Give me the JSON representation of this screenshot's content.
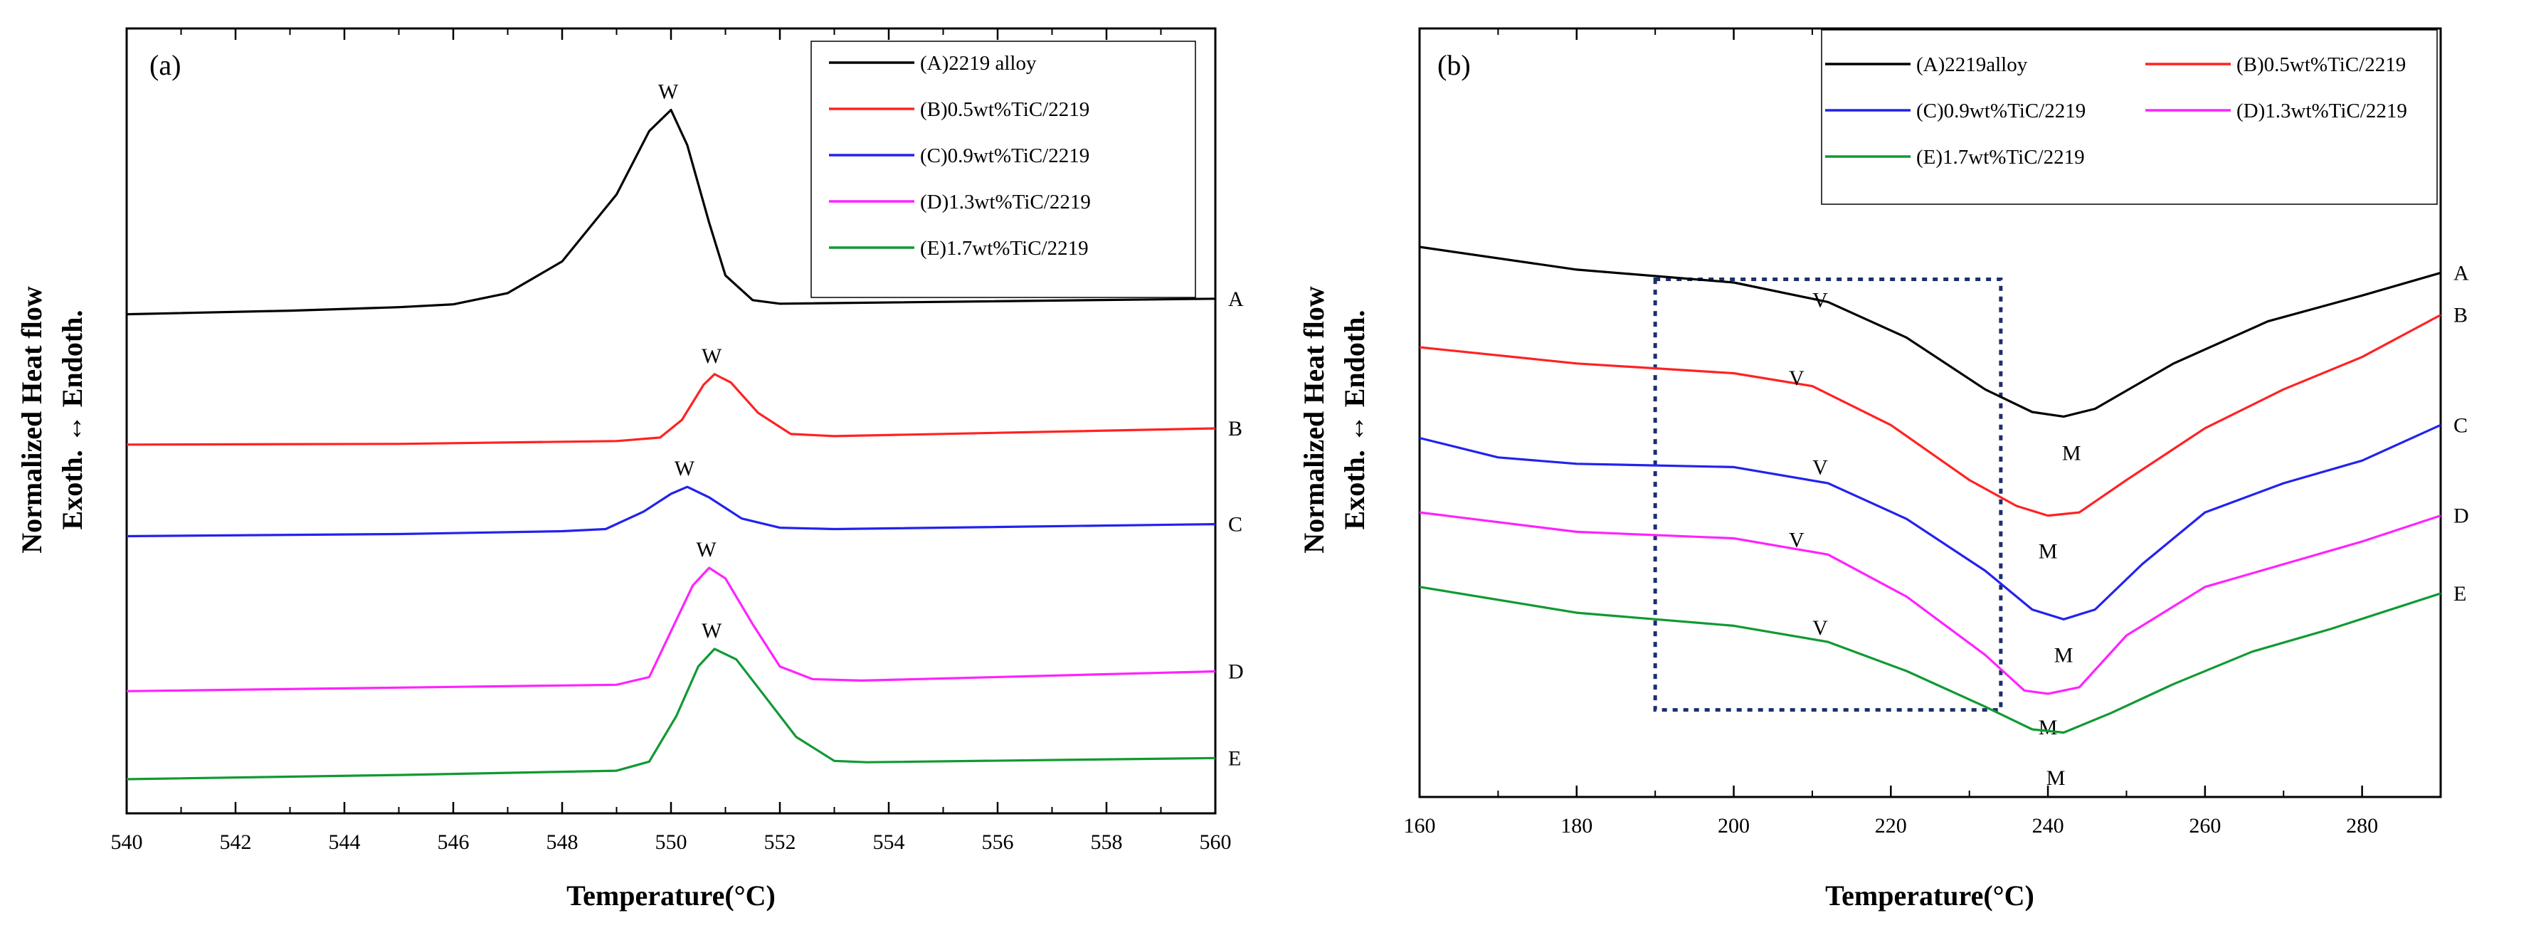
{
  "chart_data": [
    {
      "type": "line",
      "panel_label": "(a)",
      "xlabel": "Temperature(°C)",
      "ylabel_line1": "Normalized Heat flow",
      "ylabel_line2": "Exoth. ↔ Endoth.",
      "xlim": [
        540,
        560
      ],
      "ylim": [
        0,
        100
      ],
      "xticks": [
        "540",
        "542",
        "544",
        "546",
        "548",
        "550",
        "552",
        "554",
        "556",
        "558",
        "560"
      ],
      "legend": [
        "(A)2219 alloy",
        "(B)0.5wt%TiC/2219",
        "(C)0.9wt%TiC/2219",
        "(D)1.3wt%TiC/2219",
        "(E)1.7wt%TiC/2219"
      ],
      "series": [
        {
          "name": "(A)2219 alloy",
          "end_label": "A",
          "color": "#000000",
          "points": [
            [
              540,
              66
            ],
            [
              543,
              66.5
            ],
            [
              545,
              67
            ],
            [
              546,
              67.4
            ],
            [
              547,
              69
            ],
            [
              548,
              73.5
            ],
            [
              549,
              83
            ],
            [
              549.6,
              92
            ],
            [
              550,
              95
            ],
            [
              550.3,
              90
            ],
            [
              550.7,
              79
            ],
            [
              551,
              71.5
            ],
            [
              551.5,
              68
            ],
            [
              552,
              67.5
            ],
            [
              560,
              68.2
            ]
          ],
          "peak": {
            "label": "W",
            "x": 550
          }
        },
        {
          "name": "(B)0.5wt%TiC/2219",
          "end_label": "B",
          "color": "#ff2222",
          "points": [
            [
              540,
              47.5
            ],
            [
              545,
              47.6
            ],
            [
              549,
              48
            ],
            [
              549.8,
              48.5
            ],
            [
              550.2,
              51
            ],
            [
              550.6,
              56
            ],
            [
              550.8,
              57.5
            ],
            [
              551.1,
              56.3
            ],
            [
              551.6,
              52
            ],
            [
              552.2,
              49
            ],
            [
              553,
              48.7
            ],
            [
              560,
              49.8
            ]
          ],
          "peak": {
            "label": "W",
            "x": 550.8
          }
        },
        {
          "name": "(C)0.9wt%TiC/2219",
          "end_label": "C",
          "color": "#2222ee",
          "points": [
            [
              540,
              34.5
            ],
            [
              545,
              34.8
            ],
            [
              548,
              35.2
            ],
            [
              548.8,
              35.5
            ],
            [
              549.5,
              38
            ],
            [
              550,
              40.5
            ],
            [
              550.3,
              41.5
            ],
            [
              550.7,
              40
            ],
            [
              551.3,
              37
            ],
            [
              552,
              35.7
            ],
            [
              553,
              35.5
            ],
            [
              560,
              36.2
            ]
          ],
          "peak": {
            "label": "W",
            "x": 550.3
          }
        },
        {
          "name": "(D)1.3wt%TiC/2219",
          "end_label": "D",
          "color": "#ff22ff",
          "points": [
            [
              540,
              12.5
            ],
            [
              545,
              13
            ],
            [
              549,
              13.4
            ],
            [
              549.6,
              14.5
            ],
            [
              550,
              21
            ],
            [
              550.4,
              27.5
            ],
            [
              550.7,
              30
            ],
            [
              551,
              28.5
            ],
            [
              551.5,
              22
            ],
            [
              552,
              16
            ],
            [
              552.6,
              14.2
            ],
            [
              553.5,
              14
            ],
            [
              560,
              15.3
            ]
          ],
          "peak": {
            "label": "W",
            "x": 550.7
          }
        },
        {
          "name": "(E)1.7wt%TiC/2219",
          "end_label": "E",
          "color": "#119933",
          "points": [
            [
              540,
              0
            ],
            [
              545,
              0.6
            ],
            [
              549,
              1.2
            ],
            [
              549.6,
              2.5
            ],
            [
              550.1,
              9
            ],
            [
              550.5,
              16
            ],
            [
              550.8,
              18.5
            ],
            [
              551.2,
              17
            ],
            [
              551.7,
              12
            ],
            [
              552.3,
              6
            ],
            [
              553,
              2.6
            ],
            [
              553.6,
              2.4
            ],
            [
              560,
              3
            ]
          ],
          "peak": {
            "label": "W",
            "x": 550.8
          }
        }
      ]
    },
    {
      "type": "line",
      "panel_label": "(b)",
      "xlabel": "Temperature(°C)",
      "ylabel_line1": "Normalized Heat flow",
      "ylabel_line2": "Exoth. ↔ Endoth.",
      "xlim": [
        160,
        290
      ],
      "ylim": [
        0,
        100
      ],
      "xticks": [
        "160",
        "180",
        "200",
        "220",
        "240",
        "260",
        "280"
      ],
      "highlight_box": {
        "x": [
          190,
          234
        ],
        "y": [
          8.5,
          75
        ]
      },
      "legend": [
        "(A)2219alloy",
        "(B)0.5wt%TiC/2219",
        "(C)0.9wt%TiC/2219",
        "(D)1.3wt%TiC/2219",
        "(E)1.7wt%TiC/2219"
      ],
      "series": [
        {
          "name": "(A)2219alloy",
          "end_label": "A",
          "color": "#000000",
          "points": [
            [
              160,
              80
            ],
            [
              180,
              76.5
            ],
            [
              200,
              74.5
            ],
            [
              212,
              71.5
            ],
            [
              222,
              66
            ],
            [
              232,
              58
            ],
            [
              238,
              54.5
            ],
            [
              242,
              53.8
            ],
            [
              246,
              55
            ],
            [
              256,
              62
            ],
            [
              268,
              68.5
            ],
            [
              280,
              72.5
            ],
            [
              290,
              76
            ]
          ],
          "markers": [
            {
              "label": "V",
              "x": 211,
              "y": 71.8
            },
            {
              "label": "M",
              "x": 243,
              "y": 48.2
            }
          ]
        },
        {
          "name": "(B)0.5wt%TiC/2219",
          "end_label": "B",
          "color": "#ff2222",
          "points": [
            [
              160,
              64.5
            ],
            [
              180,
              62
            ],
            [
              200,
              60.5
            ],
            [
              210,
              58.5
            ],
            [
              220,
              52.5
            ],
            [
              230,
              44
            ],
            [
              236,
              40
            ],
            [
              240,
              38.5
            ],
            [
              244,
              39
            ],
            [
              250,
              44
            ],
            [
              260,
              52
            ],
            [
              270,
              58
            ],
            [
              280,
              63
            ],
            [
              290,
              69.5
            ]
          ],
          "markers": [
            {
              "label": "V",
              "x": 208,
              "y": 59.8
            },
            {
              "label": "M",
              "x": 240,
              "y": 33
            }
          ]
        },
        {
          "name": "(C)0.9wt%TiC/2219",
          "end_label": "C",
          "color": "#2222ee",
          "points": [
            [
              160,
              50.5
            ],
            [
              170,
              47.5
            ],
            [
              180,
              46.5
            ],
            [
              200,
              46
            ],
            [
              212,
              43.5
            ],
            [
              222,
              38
            ],
            [
              232,
              30
            ],
            [
              238,
              24
            ],
            [
              242,
              22.5
            ],
            [
              246,
              24
            ],
            [
              252,
              31
            ],
            [
              260,
              39
            ],
            [
              270,
              43.5
            ],
            [
              280,
              47
            ],
            [
              290,
              52.5
            ]
          ],
          "markers": [
            {
              "label": "V",
              "x": 211,
              "y": 46
            },
            {
              "label": "M",
              "x": 242,
              "y": 17
            }
          ]
        },
        {
          "name": "(D)1.3wt%TiC/2219",
          "end_label": "D",
          "color": "#ff22ff",
          "points": [
            [
              160,
              39
            ],
            [
              180,
              36
            ],
            [
              200,
              35
            ],
            [
              212,
              32.5
            ],
            [
              222,
              26
            ],
            [
              232,
              17
            ],
            [
              237,
              11.5
            ],
            [
              240,
              11
            ],
            [
              244,
              12
            ],
            [
              250,
              20
            ],
            [
              260,
              27.5
            ],
            [
              270,
              31
            ],
            [
              280,
              34.5
            ],
            [
              290,
              38.5
            ]
          ],
          "markers": [
            {
              "label": "V",
              "x": 208,
              "y": 34.8
            },
            {
              "label": "M",
              "x": 240,
              "y": 5.8
            }
          ]
        },
        {
          "name": "(E)1.7wt%TiC/2219",
          "end_label": "E",
          "color": "#119933",
          "points": [
            [
              160,
              27.5
            ],
            [
              180,
              23.5
            ],
            [
              200,
              21.5
            ],
            [
              212,
              19
            ],
            [
              222,
              14.5
            ],
            [
              232,
              9
            ],
            [
              238,
              5.5
            ],
            [
              242,
              5
            ],
            [
              248,
              8
            ],
            [
              256,
              12.5
            ],
            [
              266,
              17.5
            ],
            [
              276,
              21
            ],
            [
              290,
              26.5
            ]
          ],
          "markers": [
            {
              "label": "V",
              "x": 211,
              "y": 21.2
            },
            {
              "label": "M",
              "x": 241,
              "y": -2
            }
          ]
        }
      ]
    }
  ]
}
